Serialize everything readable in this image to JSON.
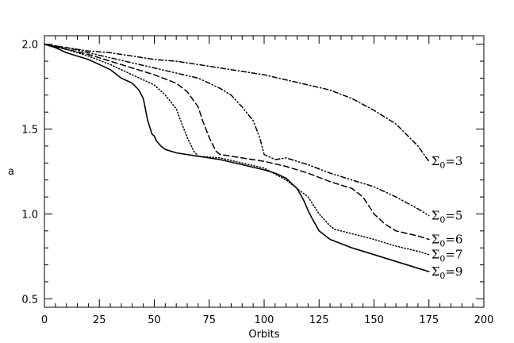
{
  "chart_data": {
    "type": "line",
    "title": "",
    "xlabel": "Orbits",
    "ylabel": "a",
    "xlim": [
      0,
      200
    ],
    "ylim": [
      0.45,
      2.05
    ],
    "grid": false,
    "legend": "inline-labels-at-line-ends",
    "x_ticks": [
      {
        "value": 0,
        "label": "0"
      },
      {
        "value": 25,
        "label": "25"
      },
      {
        "value": 50,
        "label": "50"
      },
      {
        "value": 75,
        "label": "75"
      },
      {
        "value": 100,
        "label": "100"
      },
      {
        "value": 125,
        "label": "125"
      },
      {
        "value": 150,
        "label": "150"
      },
      {
        "value": 175,
        "label": "175"
      },
      {
        "value": 200,
        "label": "200"
      }
    ],
    "y_ticks": [
      {
        "value": 0.5,
        "label": "0.5"
      },
      {
        "value": 1.0,
        "label": "1.0"
      },
      {
        "value": 1.5,
        "label": "1.5"
      },
      {
        "value": 2.0,
        "label": "2.0"
      }
    ],
    "series": [
      {
        "name": "Σ0=3",
        "label_base": "Σ",
        "label_sub": "0",
        "label_rest": "=3",
        "style": "dash-dot",
        "color": "#000000",
        "x": [
          0,
          10,
          20,
          30,
          40,
          50,
          60,
          70,
          80,
          90,
          100,
          110,
          120,
          130,
          140,
          150,
          160,
          170,
          175
        ],
        "y": [
          2.0,
          1.98,
          1.96,
          1.95,
          1.93,
          1.91,
          1.9,
          1.88,
          1.86,
          1.84,
          1.82,
          1.79,
          1.76,
          1.73,
          1.68,
          1.61,
          1.53,
          1.4,
          1.31
        ]
      },
      {
        "name": "Σ0=5",
        "label_base": "Σ",
        "label_sub": "0",
        "label_rest": "=5",
        "style": "dash-dot-dot",
        "color": "#000000",
        "x": [
          0,
          10,
          20,
          30,
          40,
          50,
          60,
          70,
          80,
          85,
          90,
          95,
          98,
          100,
          105,
          110,
          120,
          130,
          140,
          150,
          160,
          170,
          175
        ],
        "y": [
          2.0,
          1.98,
          1.95,
          1.92,
          1.89,
          1.86,
          1.83,
          1.8,
          1.74,
          1.7,
          1.63,
          1.55,
          1.45,
          1.35,
          1.32,
          1.33,
          1.29,
          1.24,
          1.2,
          1.16,
          1.1,
          1.03,
          0.99
        ]
      },
      {
        "name": "Σ0=6",
        "label_base": "Σ",
        "label_sub": "0",
        "label_rest": "=6",
        "style": "dashed",
        "color": "#000000",
        "x": [
          0,
          10,
          20,
          30,
          40,
          50,
          60,
          65,
          70,
          72,
          75,
          78,
          80,
          90,
          100,
          110,
          120,
          130,
          140,
          145,
          150,
          155,
          160,
          170,
          175
        ],
        "y": [
          2.0,
          1.97,
          1.94,
          1.9,
          1.86,
          1.82,
          1.77,
          1.72,
          1.63,
          1.55,
          1.45,
          1.37,
          1.35,
          1.33,
          1.31,
          1.28,
          1.24,
          1.19,
          1.15,
          1.1,
          1.0,
          0.94,
          0.9,
          0.87,
          0.85
        ]
      },
      {
        "name": "Σ0=7",
        "label_base": "Σ",
        "label_sub": "0",
        "label_rest": "=7",
        "style": "dotted",
        "color": "#000000",
        "x": [
          0,
          10,
          20,
          30,
          40,
          50,
          55,
          60,
          62,
          65,
          68,
          70,
          80,
          90,
          100,
          110,
          120,
          125,
          130,
          132,
          135,
          150,
          160,
          170,
          175
        ],
        "y": [
          2.0,
          1.97,
          1.93,
          1.88,
          1.82,
          1.76,
          1.7,
          1.62,
          1.55,
          1.45,
          1.37,
          1.34,
          1.33,
          1.3,
          1.27,
          1.2,
          1.1,
          1.0,
          0.93,
          0.91,
          0.9,
          0.85,
          0.81,
          0.78,
          0.76
        ]
      },
      {
        "name": "Σ0=9",
        "label_base": "Σ",
        "label_sub": "0",
        "label_rest": "=9",
        "style": "solid",
        "color": "#000000",
        "x": [
          0,
          5,
          10,
          15,
          20,
          25,
          30,
          35,
          40,
          43,
          45,
          47,
          49,
          50,
          51,
          53,
          55,
          60,
          70,
          80,
          90,
          100,
          105,
          110,
          115,
          118,
          120,
          122,
          125,
          130,
          140,
          150,
          160,
          170,
          175
        ],
        "y": [
          2.0,
          1.98,
          1.95,
          1.93,
          1.91,
          1.88,
          1.85,
          1.8,
          1.77,
          1.73,
          1.68,
          1.55,
          1.47,
          1.46,
          1.43,
          1.4,
          1.38,
          1.36,
          1.34,
          1.32,
          1.29,
          1.26,
          1.24,
          1.21,
          1.15,
          1.08,
          1.02,
          0.97,
          0.9,
          0.85,
          0.8,
          0.76,
          0.72,
          0.68,
          0.66
        ]
      }
    ]
  }
}
